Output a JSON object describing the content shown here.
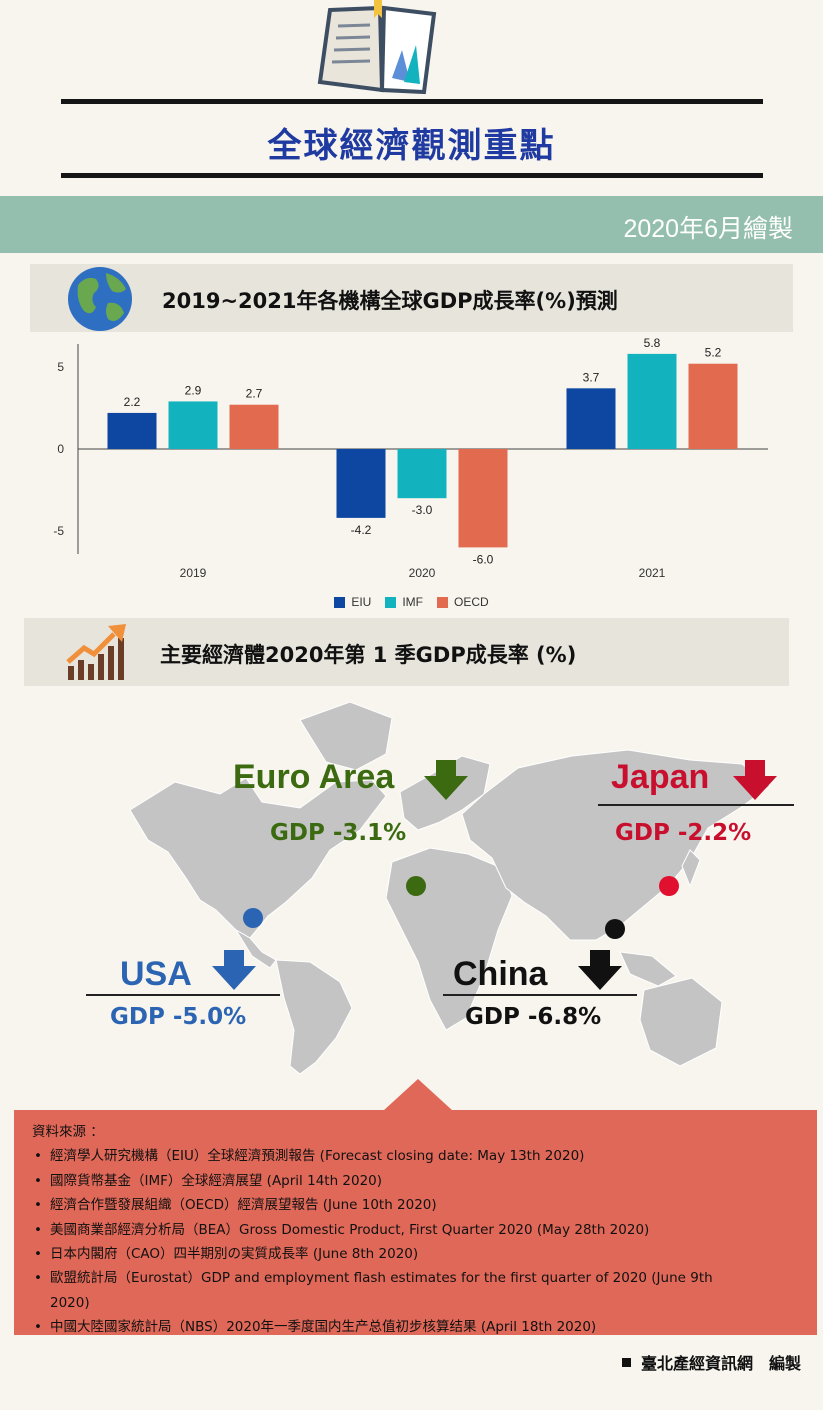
{
  "header": {
    "title": "全球經濟觀測重點",
    "date": "2020年6月繪製"
  },
  "section1": {
    "title": "2019~2021年各機構全球GDP成長率(%)預測"
  },
  "chart_data": {
    "type": "bar",
    "title": "2019~2021年各機構全球GDP成長率(%)預測",
    "categories": [
      "2019",
      "2020",
      "2021"
    ],
    "series": [
      {
        "name": "EIU",
        "color": "#0d47a1",
        "values": [
          2.2,
          -4.2,
          3.7
        ]
      },
      {
        "name": "IMF",
        "color": "#12b3bf",
        "values": [
          2.9,
          -3.0,
          5.8
        ]
      },
      {
        "name": "OECD",
        "color": "#e26a4e",
        "values": [
          2.7,
          -6.0,
          5.2
        ]
      }
    ],
    "yticks": [
      5,
      0,
      -5
    ],
    "ylim": [
      -6.5,
      6.5
    ],
    "legend": "bottom"
  },
  "section2": {
    "title": "主要經濟體2020年第 1 季GDP成長率 (%)"
  },
  "regions": [
    {
      "id": "euro",
      "name": "Euro Area",
      "gdp": "GDP -3.1%",
      "color": "#3c6a10"
    },
    {
      "id": "japan",
      "name": "Japan",
      "gdp": "GDP -2.2%",
      "color": "#c8102e"
    },
    {
      "id": "usa",
      "name": "USA",
      "gdp": "GDP -5.0%",
      "color": "#2b64b2"
    },
    {
      "id": "china",
      "name": "China",
      "gdp": "GDP -6.8%",
      "color": "#111111"
    }
  ],
  "sources": {
    "heading": "資料來源 ：",
    "items": [
      "經濟學人研究機構（EIU）全球經濟預測報告 (Forecast closing date: May 13th 2020)",
      "國際貨幣基金（IMF）全球經濟展望 (April 14th 2020)",
      "經濟合作暨發展組織（OECD）經濟展望報告 (June 10th 2020)",
      "美國商業部經濟分析局（BEA）Gross Domestic Product, First Quarter 2020 (May 28th 2020)",
      "日本内閣府（CAO）四半期別の実質成長率 (June 8th 2020)",
      "歐盟統計局（Eurostat）GDP and employment flash estimates for the first quarter of 2020 (June 9th 2020)",
      "中國大陸國家統計局（NBS）2020年一季度国内生产总值初步核算结果 (April 18th 2020)"
    ]
  },
  "footer": {
    "credit": "臺北產經資訊網　編製"
  },
  "icons": {
    "header": "open-book-icon",
    "section1": "globe-icon",
    "section2": "growth-chart-icon",
    "arrows": "arrow-down-icon"
  }
}
